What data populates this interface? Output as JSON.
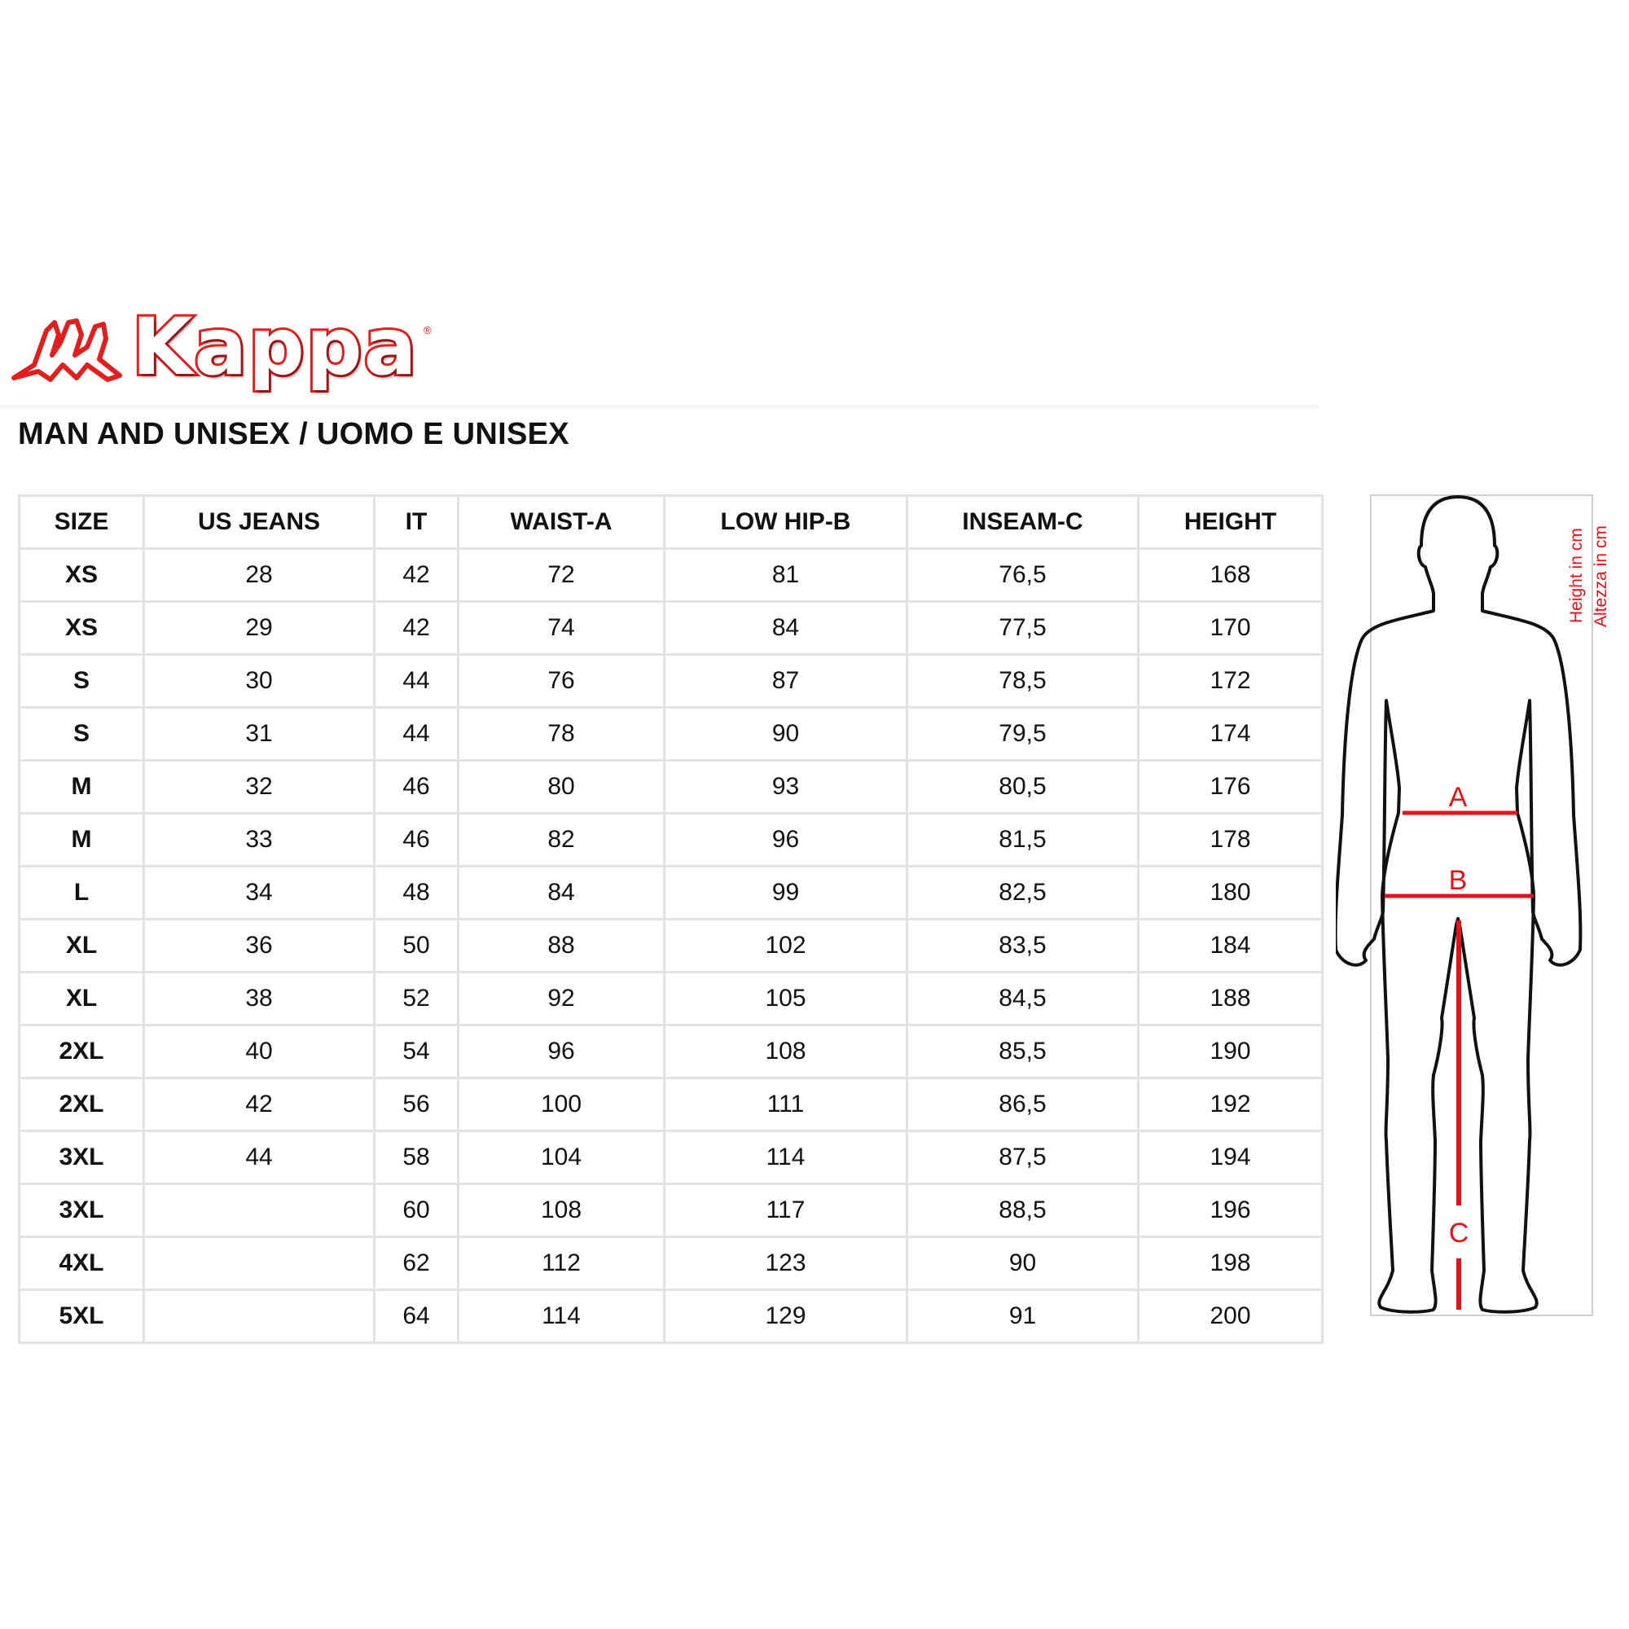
{
  "logo": {
    "text": "Kappa",
    "registered": "®",
    "brand_color": "#e0201e"
  },
  "title": "MAN AND UNISEX / UOMO E UNISEX",
  "table": {
    "headers": [
      "SIZE",
      "US JEANS",
      "IT",
      "WAIST-A",
      "LOW HIP-B",
      "INSEAM-C",
      "HEIGHT"
    ],
    "rows": [
      [
        "XS",
        "28",
        "42",
        "72",
        "81",
        "76,5",
        "168"
      ],
      [
        "XS",
        "29",
        "42",
        "74",
        "84",
        "77,5",
        "170"
      ],
      [
        "S",
        "30",
        "44",
        "76",
        "87",
        "78,5",
        "172"
      ],
      [
        "S",
        "31",
        "44",
        "78",
        "90",
        "79,5",
        "174"
      ],
      [
        "M",
        "32",
        "46",
        "80",
        "93",
        "80,5",
        "176"
      ],
      [
        "M",
        "33",
        "46",
        "82",
        "96",
        "81,5",
        "178"
      ],
      [
        "L",
        "34",
        "48",
        "84",
        "99",
        "82,5",
        "180"
      ],
      [
        "XL",
        "36",
        "50",
        "88",
        "102",
        "83,5",
        "184"
      ],
      [
        "XL",
        "38",
        "52",
        "92",
        "105",
        "84,5",
        "188"
      ],
      [
        "2XL",
        "40",
        "54",
        "96",
        "108",
        "85,5",
        "190"
      ],
      [
        "2XL",
        "42",
        "56",
        "100",
        "111",
        "86,5",
        "192"
      ],
      [
        "3XL",
        "44",
        "58",
        "104",
        "114",
        "87,5",
        "194"
      ],
      [
        "3XL",
        "",
        "60",
        "108",
        "117",
        "88,5",
        "196"
      ],
      [
        "4XL",
        "",
        "62",
        "112",
        "123",
        "90",
        "198"
      ],
      [
        "5XL",
        "",
        "64",
        "114",
        "129",
        "91",
        "200"
      ]
    ]
  },
  "figure": {
    "labels": {
      "waist": "A",
      "hip": "B",
      "inseam": "C"
    },
    "height_label_en": "Height in cm",
    "height_label_it": "Altezza in cm",
    "measure_color": "#e0141a"
  }
}
